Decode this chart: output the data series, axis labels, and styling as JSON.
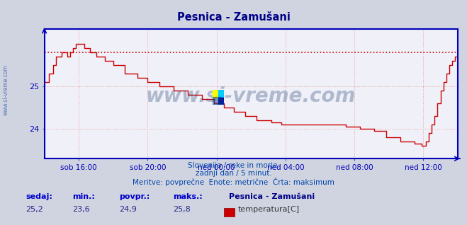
{
  "title": "Pesnica - Zamušani",
  "bg_color": "#d0d4e0",
  "plot_bg_color": "#f0f0f8",
  "grid_color": "#e8a0a0",
  "axis_color": "#0000bb",
  "line_color": "#cc0000",
  "dashed_line_color": "#cc0000",
  "watermark_color": "#1a3a6e",
  "ylim_min": 23.3,
  "ylim_max": 26.35,
  "xlim_min": 0,
  "xlim_max": 288,
  "xtick_positions": [
    24,
    72,
    120,
    168,
    216,
    264
  ],
  "xtick_labels": [
    "sob 16:00",
    "sob 20:00",
    "ned 00:00",
    "ned 04:00",
    "ned 08:00",
    "ned 12:00"
  ],
  "subtitle1": "Slovenija / reke in morje.",
  "subtitle2": "zadnji dan / 5 minut.",
  "subtitle3": "Meritve: povprečne  Enote: metrične  Črta: maksimum",
  "stat_label1": "sedaj:",
  "stat_label2": "min.:",
  "stat_label3": "povpr.:",
  "stat_label4": "maks.:",
  "stat_val1": "25,2",
  "stat_val2": "23,6",
  "stat_val3": "24,9",
  "stat_val4": "25,8",
  "legend_title": "Pesnica - Zamušani",
  "legend_item": "temperatura[C]",
  "max_line_y": 25.8,
  "watermark": "www.si-vreme.com",
  "left_watermark": "www.si-vreme.com"
}
